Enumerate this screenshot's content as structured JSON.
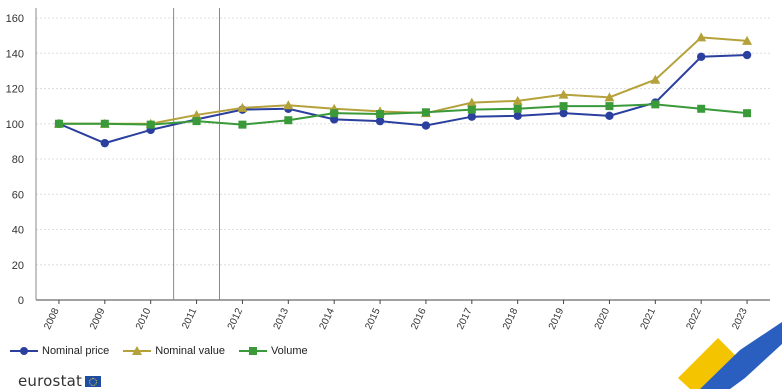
{
  "chart_data": {
    "type": "line",
    "x": [
      "2008",
      "2009",
      "2010",
      "2011",
      "2012",
      "2013",
      "2014",
      "2015",
      "2016",
      "2017",
      "2018",
      "2019",
      "2020",
      "2021",
      "2022",
      "2023"
    ],
    "ylim": [
      0,
      160
    ],
    "yticks": [
      "0",
      "20",
      "40",
      "60",
      "80",
      "100",
      "120",
      "140",
      "160"
    ],
    "grid": true,
    "legend_position": "bottom-left",
    "series": [
      {
        "name": "Nominal price",
        "color": "#2b3f9e",
        "marker": "circle",
        "values": [
          100,
          89,
          96.5,
          102.5,
          108,
          108.5,
          102.5,
          101.5,
          99,
          104,
          104.5,
          106,
          104.5,
          112,
          138,
          139
        ]
      },
      {
        "name": "Nominal value",
        "color": "#b5a13a",
        "marker": "triangle",
        "values": [
          100,
          100,
          100,
          105,
          109,
          110.5,
          108.5,
          107,
          106,
          112,
          113,
          116.5,
          115,
          125,
          149,
          147
        ]
      },
      {
        "name": "Volume",
        "color": "#3a9a3a",
        "marker": "square",
        "values": [
          100,
          100,
          99.5,
          101.5,
          99.5,
          102,
          106,
          105.5,
          106.5,
          108,
          108.5,
          110,
          110,
          111,
          108.5,
          106
        ]
      }
    ]
  },
  "brand": {
    "text": "eurostat"
  }
}
